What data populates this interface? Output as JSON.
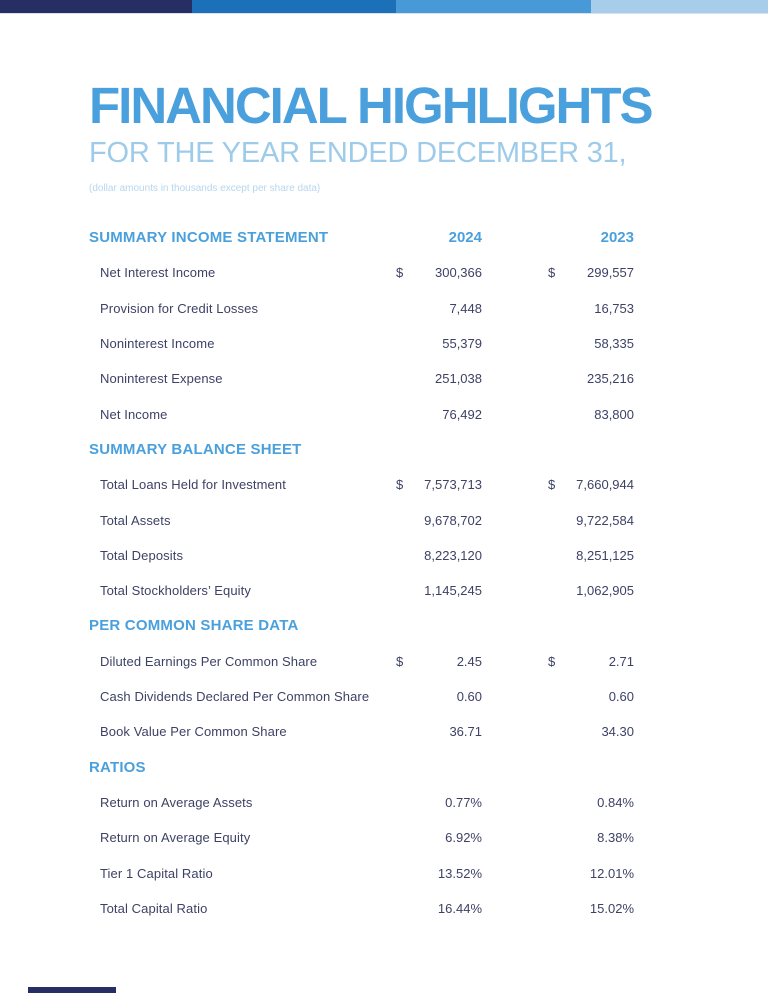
{
  "page": {
    "top_bar_colors": [
      "#272e63",
      "#1c70b8",
      "#4899d7",
      "#a8cdeb"
    ],
    "bottom_bar_color": "#272e63",
    "accent_blue": "#4aa0dc",
    "body_text_color": "#3d4265"
  },
  "header": {
    "title": "FINANCIAL HIGHLIGHTS",
    "subtitle": "FOR THE YEAR ENDED DECEMBER 31,",
    "note": "(dollar amounts in thousands except per share data)"
  },
  "table": {
    "years": [
      "2024",
      "2023"
    ],
    "currency_symbol": "$",
    "sections": [
      {
        "title": "SUMMARY INCOME STATEMENT",
        "rows": [
          {
            "label": "Net Interest Income",
            "dollar": true,
            "v2024": "300,366",
            "v2023": "299,557"
          },
          {
            "label": "Provision for Credit Losses",
            "dollar": false,
            "v2024": "7,448",
            "v2023": "16,753"
          },
          {
            "label": "Noninterest Income",
            "dollar": false,
            "v2024": "55,379",
            "v2023": "58,335"
          },
          {
            "label": "Noninterest Expense",
            "dollar": false,
            "v2024": "251,038",
            "v2023": "235,216"
          },
          {
            "label": "Net Income",
            "dollar": false,
            "v2024": "76,492",
            "v2023": "83,800"
          }
        ]
      },
      {
        "title": "SUMMARY BALANCE SHEET",
        "rows": [
          {
            "label": "Total Loans Held for Investment",
            "dollar": true,
            "v2024": "7,573,713",
            "v2023": "7,660,944"
          },
          {
            "label": "Total Assets",
            "dollar": false,
            "v2024": "9,678,702",
            "v2023": "9,722,584"
          },
          {
            "label": "Total Deposits",
            "dollar": false,
            "v2024": "8,223,120",
            "v2023": "8,251,125"
          },
          {
            "label": "Total Stockholders’ Equity",
            "dollar": false,
            "v2024": "1,145,245",
            "v2023": "1,062,905"
          }
        ]
      },
      {
        "title": "PER COMMON SHARE DATA",
        "rows": [
          {
            "label": "Diluted Earnings Per Common Share",
            "dollar": true,
            "v2024": "2.45",
            "v2023": "2.71"
          },
          {
            "label": "Cash Dividends Declared Per Common Share",
            "dollar": false,
            "v2024": "0.60",
            "v2023": "0.60"
          },
          {
            "label": "Book Value Per Common Share",
            "dollar": false,
            "v2024": "36.71",
            "v2023": "34.30"
          }
        ]
      },
      {
        "title": "RATIOS",
        "rows": [
          {
            "label": "Return on Average Assets",
            "dollar": false,
            "v2024": "0.77%",
            "v2023": "0.84%"
          },
          {
            "label": "Return on Average Equity",
            "dollar": false,
            "v2024": "6.92%",
            "v2023": "8.38%"
          },
          {
            "label": "Tier 1 Capital Ratio",
            "dollar": false,
            "v2024": "13.52%",
            "v2023": "12.01%"
          },
          {
            "label": "Total Capital Ratio",
            "dollar": false,
            "v2024": "16.44%",
            "v2023": "15.02%"
          }
        ]
      }
    ]
  }
}
